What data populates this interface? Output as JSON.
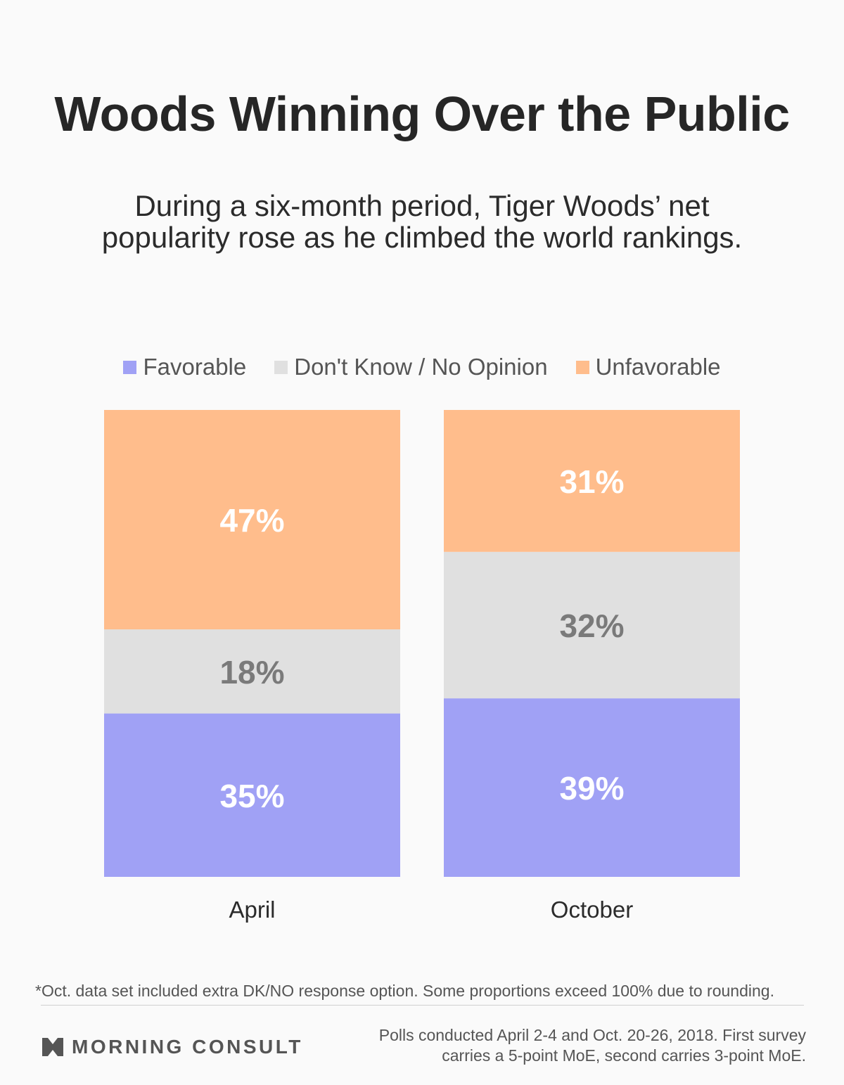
{
  "title": "Woods Winning Over the Public",
  "subtitle": "During a six-month period, Tiger Woods’ net popularity rose as he climbed the world rankings.",
  "colors": {
    "favorable": "#a0a1f5",
    "dont_know": "#e0e0e0",
    "unfavorable": "#ffbd8c",
    "label_light": "#ffffff",
    "label_dark": "#7a7a7a"
  },
  "chart_data": {
    "type": "bar",
    "stacked": true,
    "categories": [
      "April",
      "October"
    ],
    "series": [
      {
        "name": "Favorable",
        "values": [
          35,
          39
        ]
      },
      {
        "name": "Don't Know / No Opinion",
        "values": [
          18,
          32
        ]
      },
      {
        "name": "Unfavorable",
        "values": [
          47,
          31
        ]
      }
    ],
    "data_labels": [
      [
        "35%",
        "39%"
      ],
      [
        "18%",
        "32%"
      ],
      [
        "47%",
        "31%"
      ]
    ],
    "ylim": [
      0,
      100
    ],
    "grid": false,
    "legend_position": "top-center"
  },
  "footnote": "*Oct. data set included extra DK/NO response option. Some proportions exceed 100% due to rounding.",
  "brand": {
    "logo_text": "MORNING CONSULT",
    "logo_icon": "morning-consult-logo-icon"
  },
  "source": {
    "line1": "Polls conducted April 2-4 and Oct. 20-26, 2018. First survey",
    "line2": "carries a 5-point MoE, second carries 3-point MoE."
  }
}
